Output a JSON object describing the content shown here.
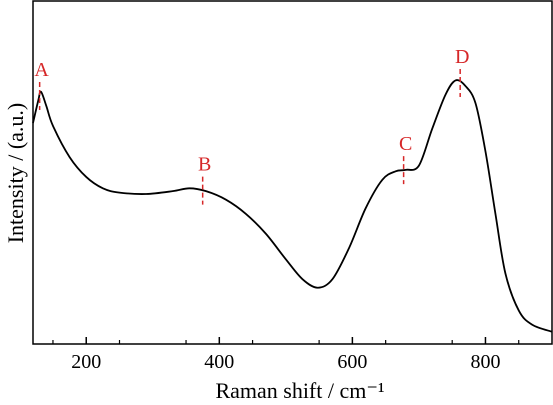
{
  "chart_data": {
    "type": "line",
    "xlabel": "Raman shift / cm⁻¹",
    "ylabel": "Intensity / (a.u.)",
    "xlim": [
      120,
      900
    ],
    "ylim": [
      0,
      1
    ],
    "x_ticks": [
      200,
      400,
      600,
      800
    ],
    "y_ticks_shown": false,
    "grid": false,
    "annotation_color": "#d62728",
    "line_color": "#000000",
    "series": [
      {
        "values": [
          {
            "x": 120,
            "y": 0.75
          },
          {
            "x": 128,
            "y": 0.83
          },
          {
            "x": 132,
            "y": 0.86
          },
          {
            "x": 140,
            "y": 0.81
          },
          {
            "x": 150,
            "y": 0.74
          },
          {
            "x": 175,
            "y": 0.63
          },
          {
            "x": 200,
            "y": 0.56
          },
          {
            "x": 225,
            "y": 0.52
          },
          {
            "x": 250,
            "y": 0.505
          },
          {
            "x": 290,
            "y": 0.5
          },
          {
            "x": 330,
            "y": 0.51
          },
          {
            "x": 355,
            "y": 0.52
          },
          {
            "x": 380,
            "y": 0.51
          },
          {
            "x": 410,
            "y": 0.48
          },
          {
            "x": 440,
            "y": 0.43
          },
          {
            "x": 470,
            "y": 0.36
          },
          {
            "x": 500,
            "y": 0.27
          },
          {
            "x": 525,
            "y": 0.2
          },
          {
            "x": 548,
            "y": 0.17
          },
          {
            "x": 570,
            "y": 0.2
          },
          {
            "x": 595,
            "y": 0.31
          },
          {
            "x": 620,
            "y": 0.45
          },
          {
            "x": 645,
            "y": 0.55
          },
          {
            "x": 665,
            "y": 0.58
          },
          {
            "x": 680,
            "y": 0.585
          },
          {
            "x": 700,
            "y": 0.6
          },
          {
            "x": 720,
            "y": 0.73
          },
          {
            "x": 740,
            "y": 0.85
          },
          {
            "x": 755,
            "y": 0.9
          },
          {
            "x": 770,
            "y": 0.88
          },
          {
            "x": 785,
            "y": 0.82
          },
          {
            "x": 800,
            "y": 0.65
          },
          {
            "x": 815,
            "y": 0.43
          },
          {
            "x": 830,
            "y": 0.22
          },
          {
            "x": 850,
            "y": 0.09
          },
          {
            "x": 870,
            "y": 0.04
          },
          {
            "x": 900,
            "y": 0.015
          }
        ]
      }
    ],
    "annotations": [
      {
        "label": "A",
        "x": 130
      },
      {
        "label": "B",
        "x": 375
      },
      {
        "label": "C",
        "x": 677
      },
      {
        "label": "D",
        "x": 762
      }
    ]
  }
}
